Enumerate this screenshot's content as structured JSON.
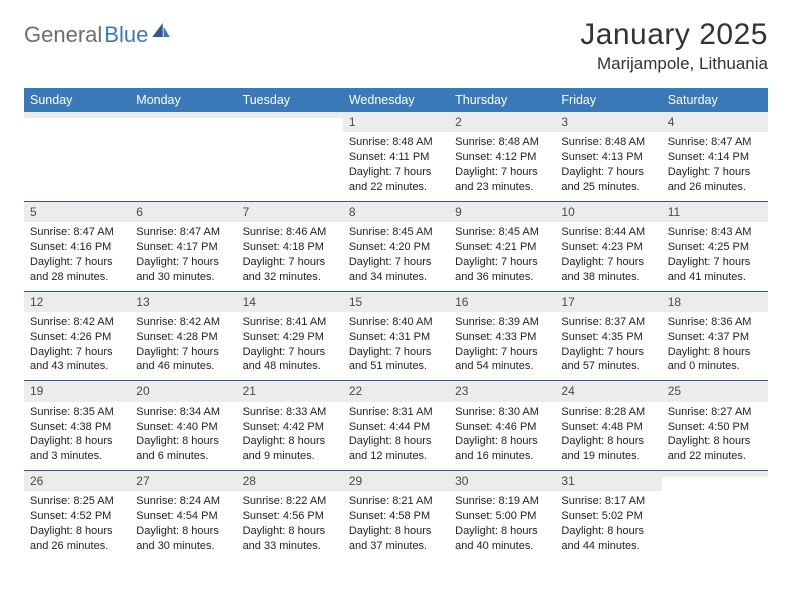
{
  "brand": {
    "part1": "General",
    "part2": "Blue"
  },
  "title": "January 2025",
  "location": "Marijampole, Lithuania",
  "colors": {
    "header_bg": "#3a79b7",
    "header_text": "#ffffff",
    "daynum_bg": "#ececec",
    "rule": "#2f5a8a",
    "body_text": "#222222",
    "logo_gray": "#6e6e6e",
    "logo_blue": "#3a79b7",
    "page_bg": "#ffffff"
  },
  "typography": {
    "title_fontsize": 30,
    "location_fontsize": 17,
    "dow_fontsize": 12.5,
    "daynum_fontsize": 12,
    "cell_fontsize": 11
  },
  "days_of_week": [
    "Sunday",
    "Monday",
    "Tuesday",
    "Wednesday",
    "Thursday",
    "Friday",
    "Saturday"
  ],
  "weeks": [
    [
      {
        "n": "",
        "sr": "",
        "ss": "",
        "dl1": "",
        "dl2": "",
        "empty": true
      },
      {
        "n": "",
        "sr": "",
        "ss": "",
        "dl1": "",
        "dl2": "",
        "empty": true
      },
      {
        "n": "",
        "sr": "",
        "ss": "",
        "dl1": "",
        "dl2": "",
        "empty": true
      },
      {
        "n": "1",
        "sr": "Sunrise: 8:48 AM",
        "ss": "Sunset: 4:11 PM",
        "dl1": "Daylight: 7 hours",
        "dl2": "and 22 minutes."
      },
      {
        "n": "2",
        "sr": "Sunrise: 8:48 AM",
        "ss": "Sunset: 4:12 PM",
        "dl1": "Daylight: 7 hours",
        "dl2": "and 23 minutes."
      },
      {
        "n": "3",
        "sr": "Sunrise: 8:48 AM",
        "ss": "Sunset: 4:13 PM",
        "dl1": "Daylight: 7 hours",
        "dl2": "and 25 minutes."
      },
      {
        "n": "4",
        "sr": "Sunrise: 8:47 AM",
        "ss": "Sunset: 4:14 PM",
        "dl1": "Daylight: 7 hours",
        "dl2": "and 26 minutes."
      }
    ],
    [
      {
        "n": "5",
        "sr": "Sunrise: 8:47 AM",
        "ss": "Sunset: 4:16 PM",
        "dl1": "Daylight: 7 hours",
        "dl2": "and 28 minutes."
      },
      {
        "n": "6",
        "sr": "Sunrise: 8:47 AM",
        "ss": "Sunset: 4:17 PM",
        "dl1": "Daylight: 7 hours",
        "dl2": "and 30 minutes."
      },
      {
        "n": "7",
        "sr": "Sunrise: 8:46 AM",
        "ss": "Sunset: 4:18 PM",
        "dl1": "Daylight: 7 hours",
        "dl2": "and 32 minutes."
      },
      {
        "n": "8",
        "sr": "Sunrise: 8:45 AM",
        "ss": "Sunset: 4:20 PM",
        "dl1": "Daylight: 7 hours",
        "dl2": "and 34 minutes."
      },
      {
        "n": "9",
        "sr": "Sunrise: 8:45 AM",
        "ss": "Sunset: 4:21 PM",
        "dl1": "Daylight: 7 hours",
        "dl2": "and 36 minutes."
      },
      {
        "n": "10",
        "sr": "Sunrise: 8:44 AM",
        "ss": "Sunset: 4:23 PM",
        "dl1": "Daylight: 7 hours",
        "dl2": "and 38 minutes."
      },
      {
        "n": "11",
        "sr": "Sunrise: 8:43 AM",
        "ss": "Sunset: 4:25 PM",
        "dl1": "Daylight: 7 hours",
        "dl2": "and 41 minutes."
      }
    ],
    [
      {
        "n": "12",
        "sr": "Sunrise: 8:42 AM",
        "ss": "Sunset: 4:26 PM",
        "dl1": "Daylight: 7 hours",
        "dl2": "and 43 minutes."
      },
      {
        "n": "13",
        "sr": "Sunrise: 8:42 AM",
        "ss": "Sunset: 4:28 PM",
        "dl1": "Daylight: 7 hours",
        "dl2": "and 46 minutes."
      },
      {
        "n": "14",
        "sr": "Sunrise: 8:41 AM",
        "ss": "Sunset: 4:29 PM",
        "dl1": "Daylight: 7 hours",
        "dl2": "and 48 minutes."
      },
      {
        "n": "15",
        "sr": "Sunrise: 8:40 AM",
        "ss": "Sunset: 4:31 PM",
        "dl1": "Daylight: 7 hours",
        "dl2": "and 51 minutes."
      },
      {
        "n": "16",
        "sr": "Sunrise: 8:39 AM",
        "ss": "Sunset: 4:33 PM",
        "dl1": "Daylight: 7 hours",
        "dl2": "and 54 minutes."
      },
      {
        "n": "17",
        "sr": "Sunrise: 8:37 AM",
        "ss": "Sunset: 4:35 PM",
        "dl1": "Daylight: 7 hours",
        "dl2": "and 57 minutes."
      },
      {
        "n": "18",
        "sr": "Sunrise: 8:36 AM",
        "ss": "Sunset: 4:37 PM",
        "dl1": "Daylight: 8 hours",
        "dl2": "and 0 minutes."
      }
    ],
    [
      {
        "n": "19",
        "sr": "Sunrise: 8:35 AM",
        "ss": "Sunset: 4:38 PM",
        "dl1": "Daylight: 8 hours",
        "dl2": "and 3 minutes."
      },
      {
        "n": "20",
        "sr": "Sunrise: 8:34 AM",
        "ss": "Sunset: 4:40 PM",
        "dl1": "Daylight: 8 hours",
        "dl2": "and 6 minutes."
      },
      {
        "n": "21",
        "sr": "Sunrise: 8:33 AM",
        "ss": "Sunset: 4:42 PM",
        "dl1": "Daylight: 8 hours",
        "dl2": "and 9 minutes."
      },
      {
        "n": "22",
        "sr": "Sunrise: 8:31 AM",
        "ss": "Sunset: 4:44 PM",
        "dl1": "Daylight: 8 hours",
        "dl2": "and 12 minutes."
      },
      {
        "n": "23",
        "sr": "Sunrise: 8:30 AM",
        "ss": "Sunset: 4:46 PM",
        "dl1": "Daylight: 8 hours",
        "dl2": "and 16 minutes."
      },
      {
        "n": "24",
        "sr": "Sunrise: 8:28 AM",
        "ss": "Sunset: 4:48 PM",
        "dl1": "Daylight: 8 hours",
        "dl2": "and 19 minutes."
      },
      {
        "n": "25",
        "sr": "Sunrise: 8:27 AM",
        "ss": "Sunset: 4:50 PM",
        "dl1": "Daylight: 8 hours",
        "dl2": "and 22 minutes."
      }
    ],
    [
      {
        "n": "26",
        "sr": "Sunrise: 8:25 AM",
        "ss": "Sunset: 4:52 PM",
        "dl1": "Daylight: 8 hours",
        "dl2": "and 26 minutes."
      },
      {
        "n": "27",
        "sr": "Sunrise: 8:24 AM",
        "ss": "Sunset: 4:54 PM",
        "dl1": "Daylight: 8 hours",
        "dl2": "and 30 minutes."
      },
      {
        "n": "28",
        "sr": "Sunrise: 8:22 AM",
        "ss": "Sunset: 4:56 PM",
        "dl1": "Daylight: 8 hours",
        "dl2": "and 33 minutes."
      },
      {
        "n": "29",
        "sr": "Sunrise: 8:21 AM",
        "ss": "Sunset: 4:58 PM",
        "dl1": "Daylight: 8 hours",
        "dl2": "and 37 minutes."
      },
      {
        "n": "30",
        "sr": "Sunrise: 8:19 AM",
        "ss": "Sunset: 5:00 PM",
        "dl1": "Daylight: 8 hours",
        "dl2": "and 40 minutes."
      },
      {
        "n": "31",
        "sr": "Sunrise: 8:17 AM",
        "ss": "Sunset: 5:02 PM",
        "dl1": "Daylight: 8 hours",
        "dl2": "and 44 minutes."
      },
      {
        "n": "",
        "sr": "",
        "ss": "",
        "dl1": "",
        "dl2": "",
        "empty": true
      }
    ]
  ]
}
